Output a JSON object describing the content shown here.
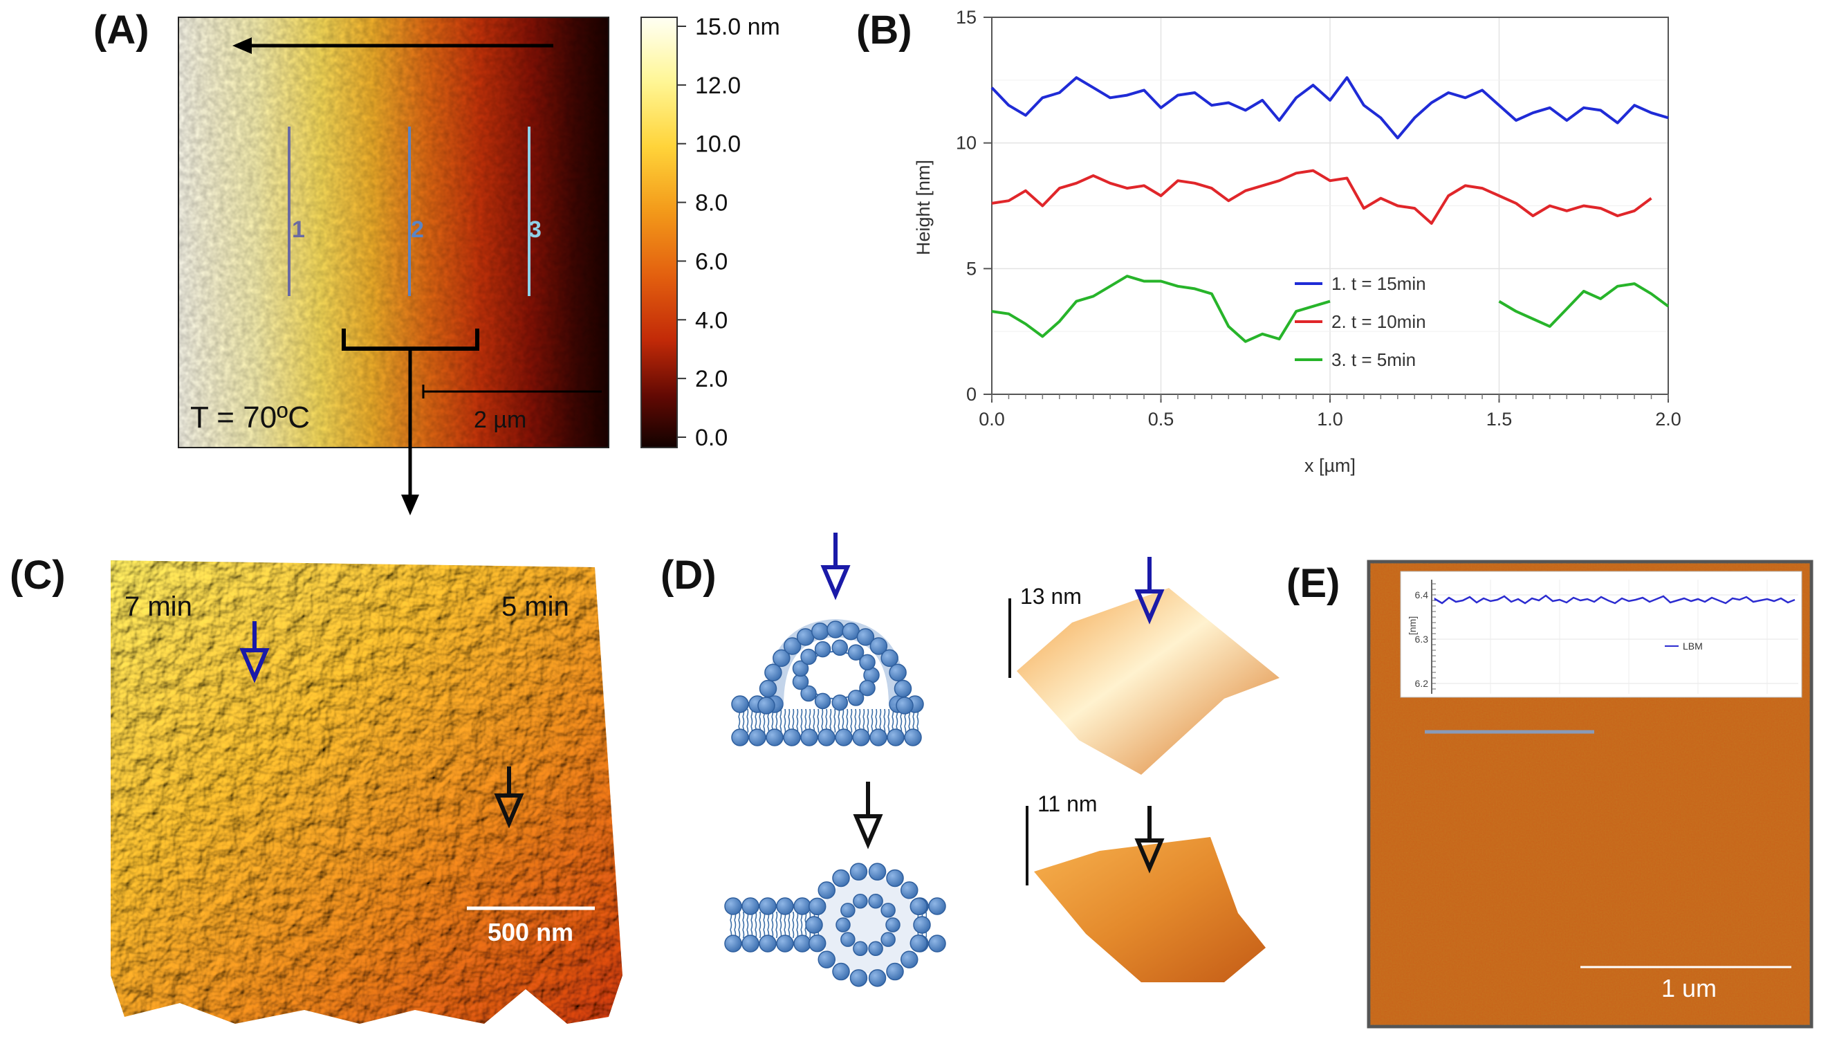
{
  "figure": {
    "panels": [
      {
        "id": "A",
        "label": "(A)"
      },
      {
        "id": "B",
        "label": "(B)"
      },
      {
        "id": "C",
        "label": "(C)"
      },
      {
        "id": "D",
        "label": "(D)"
      },
      {
        "id": "E",
        "label": "(E)"
      }
    ]
  },
  "panelA": {
    "temperature": "T = 70ºC",
    "scalebar": "2 µm",
    "line_labels": [
      "1",
      "2",
      "3"
    ],
    "line_colors": [
      "#6a6aa0",
      "#5b84c4",
      "#8fd0e8"
    ],
    "colorbar_ticks": [
      "15.0 nm",
      "12.0",
      "10.0",
      "8.0",
      "6.0",
      "4.0",
      "2.0",
      "0.0"
    ],
    "colorbar_colors": [
      "#fffff0",
      "#fff68a",
      "#ffd23a",
      "#f29a1a",
      "#e2600e",
      "#c82a08",
      "#6e0a03",
      "#140200"
    ]
  },
  "panelB": {
    "chart_data": {
      "type": "line",
      "xlabel": "x [µm]",
      "ylabel": "Height [nm]",
      "xlim": [
        0,
        2.0
      ],
      "ylim": [
        0,
        15
      ],
      "x_ticks": [
        "0.0",
        "0.5",
        "1.0",
        "1.5",
        "2.0"
      ],
      "y_ticks": [
        "0",
        "5",
        "10",
        "15"
      ],
      "grid": true,
      "legend_position": "bottom-right",
      "series": [
        {
          "name": "1. t = 15min",
          "color": "#1f2bd6",
          "x": [
            0.0,
            0.05,
            0.1,
            0.15,
            0.2,
            0.25,
            0.3,
            0.35,
            0.4,
            0.45,
            0.5,
            0.55,
            0.6,
            0.65,
            0.7,
            0.75,
            0.8,
            0.85,
            0.9,
            0.95,
            1.0,
            1.05,
            1.1,
            1.15,
            1.2,
            1.25,
            1.3,
            1.35,
            1.4,
            1.45,
            1.5,
            1.55,
            1.6,
            1.65,
            1.7,
            1.75,
            1.8,
            1.85,
            1.9,
            1.95,
            2.0
          ],
          "y": [
            12.2,
            11.5,
            11.1,
            11.8,
            12.0,
            12.6,
            12.2,
            11.8,
            11.9,
            12.1,
            11.4,
            11.9,
            12.0,
            11.5,
            11.6,
            11.3,
            11.7,
            10.9,
            11.8,
            12.3,
            11.7,
            12.6,
            11.5,
            11.0,
            10.2,
            11.0,
            11.6,
            12.0,
            11.8,
            12.1,
            11.5,
            10.9,
            11.2,
            11.4,
            10.9,
            11.4,
            11.3,
            10.8,
            11.5,
            11.2,
            11.0
          ]
        },
        {
          "name": "2. t = 10min",
          "color": "#e0262a",
          "x": [
            0.0,
            0.05,
            0.1,
            0.15,
            0.2,
            0.25,
            0.3,
            0.35,
            0.4,
            0.45,
            0.5,
            0.55,
            0.6,
            0.65,
            0.7,
            0.75,
            0.8,
            0.85,
            0.9,
            0.95,
            1.0,
            1.05,
            1.1,
            1.15,
            1.2,
            1.25,
            1.3,
            1.35,
            1.4,
            1.45,
            1.5,
            1.55,
            1.6,
            1.65,
            1.7,
            1.75,
            1.8,
            1.85,
            1.9,
            1.95
          ],
          "y": [
            7.6,
            7.7,
            8.1,
            7.5,
            8.2,
            8.4,
            8.7,
            8.4,
            8.2,
            8.3,
            7.9,
            8.5,
            8.4,
            8.2,
            7.7,
            8.1,
            8.3,
            8.5,
            8.8,
            8.9,
            8.5,
            8.6,
            7.4,
            7.8,
            7.5,
            7.4,
            6.8,
            7.9,
            8.3,
            8.2,
            7.9,
            7.6,
            7.1,
            7.5,
            7.3,
            7.5,
            7.4,
            7.1,
            7.3,
            7.8
          ]
        },
        {
          "name": "3. t = 5min",
          "color": "#27b42a",
          "x": [
            0.0,
            0.05,
            0.1,
            0.15,
            0.2,
            0.25,
            0.3,
            0.35,
            0.4,
            0.45,
            0.5,
            0.55,
            0.6,
            0.65,
            0.7,
            0.75,
            0.8,
            0.85,
            0.9,
            0.95,
            1.0,
            1.5,
            1.55,
            1.6,
            1.65,
            1.7,
            1.75,
            1.8,
            1.85,
            1.9,
            1.95,
            2.0
          ],
          "y": [
            3.3,
            3.2,
            2.8,
            2.3,
            2.9,
            3.7,
            3.9,
            4.3,
            4.7,
            4.5,
            4.5,
            4.3,
            4.2,
            4.0,
            2.7,
            2.1,
            2.4,
            2.2,
            3.3,
            3.5,
            3.7,
            3.7,
            3.3,
            3.0,
            2.7,
            3.4,
            4.1,
            3.8,
            4.3,
            4.4,
            4.0,
            3.5
          ]
        }
      ]
    }
  },
  "panelC": {
    "left_time": "7 min",
    "right_time": "5 min",
    "scalebar": "500 nm"
  },
  "panelD": {
    "top_height": "13 nm",
    "bottom_height": "11 nm"
  },
  "panelE": {
    "scalebar": "1 um",
    "inset": {
      "ylabel": "[nm]",
      "y_ticks": [
        "6.4",
        "6.3",
        "6.2"
      ],
      "legend": "LBM"
    }
  }
}
